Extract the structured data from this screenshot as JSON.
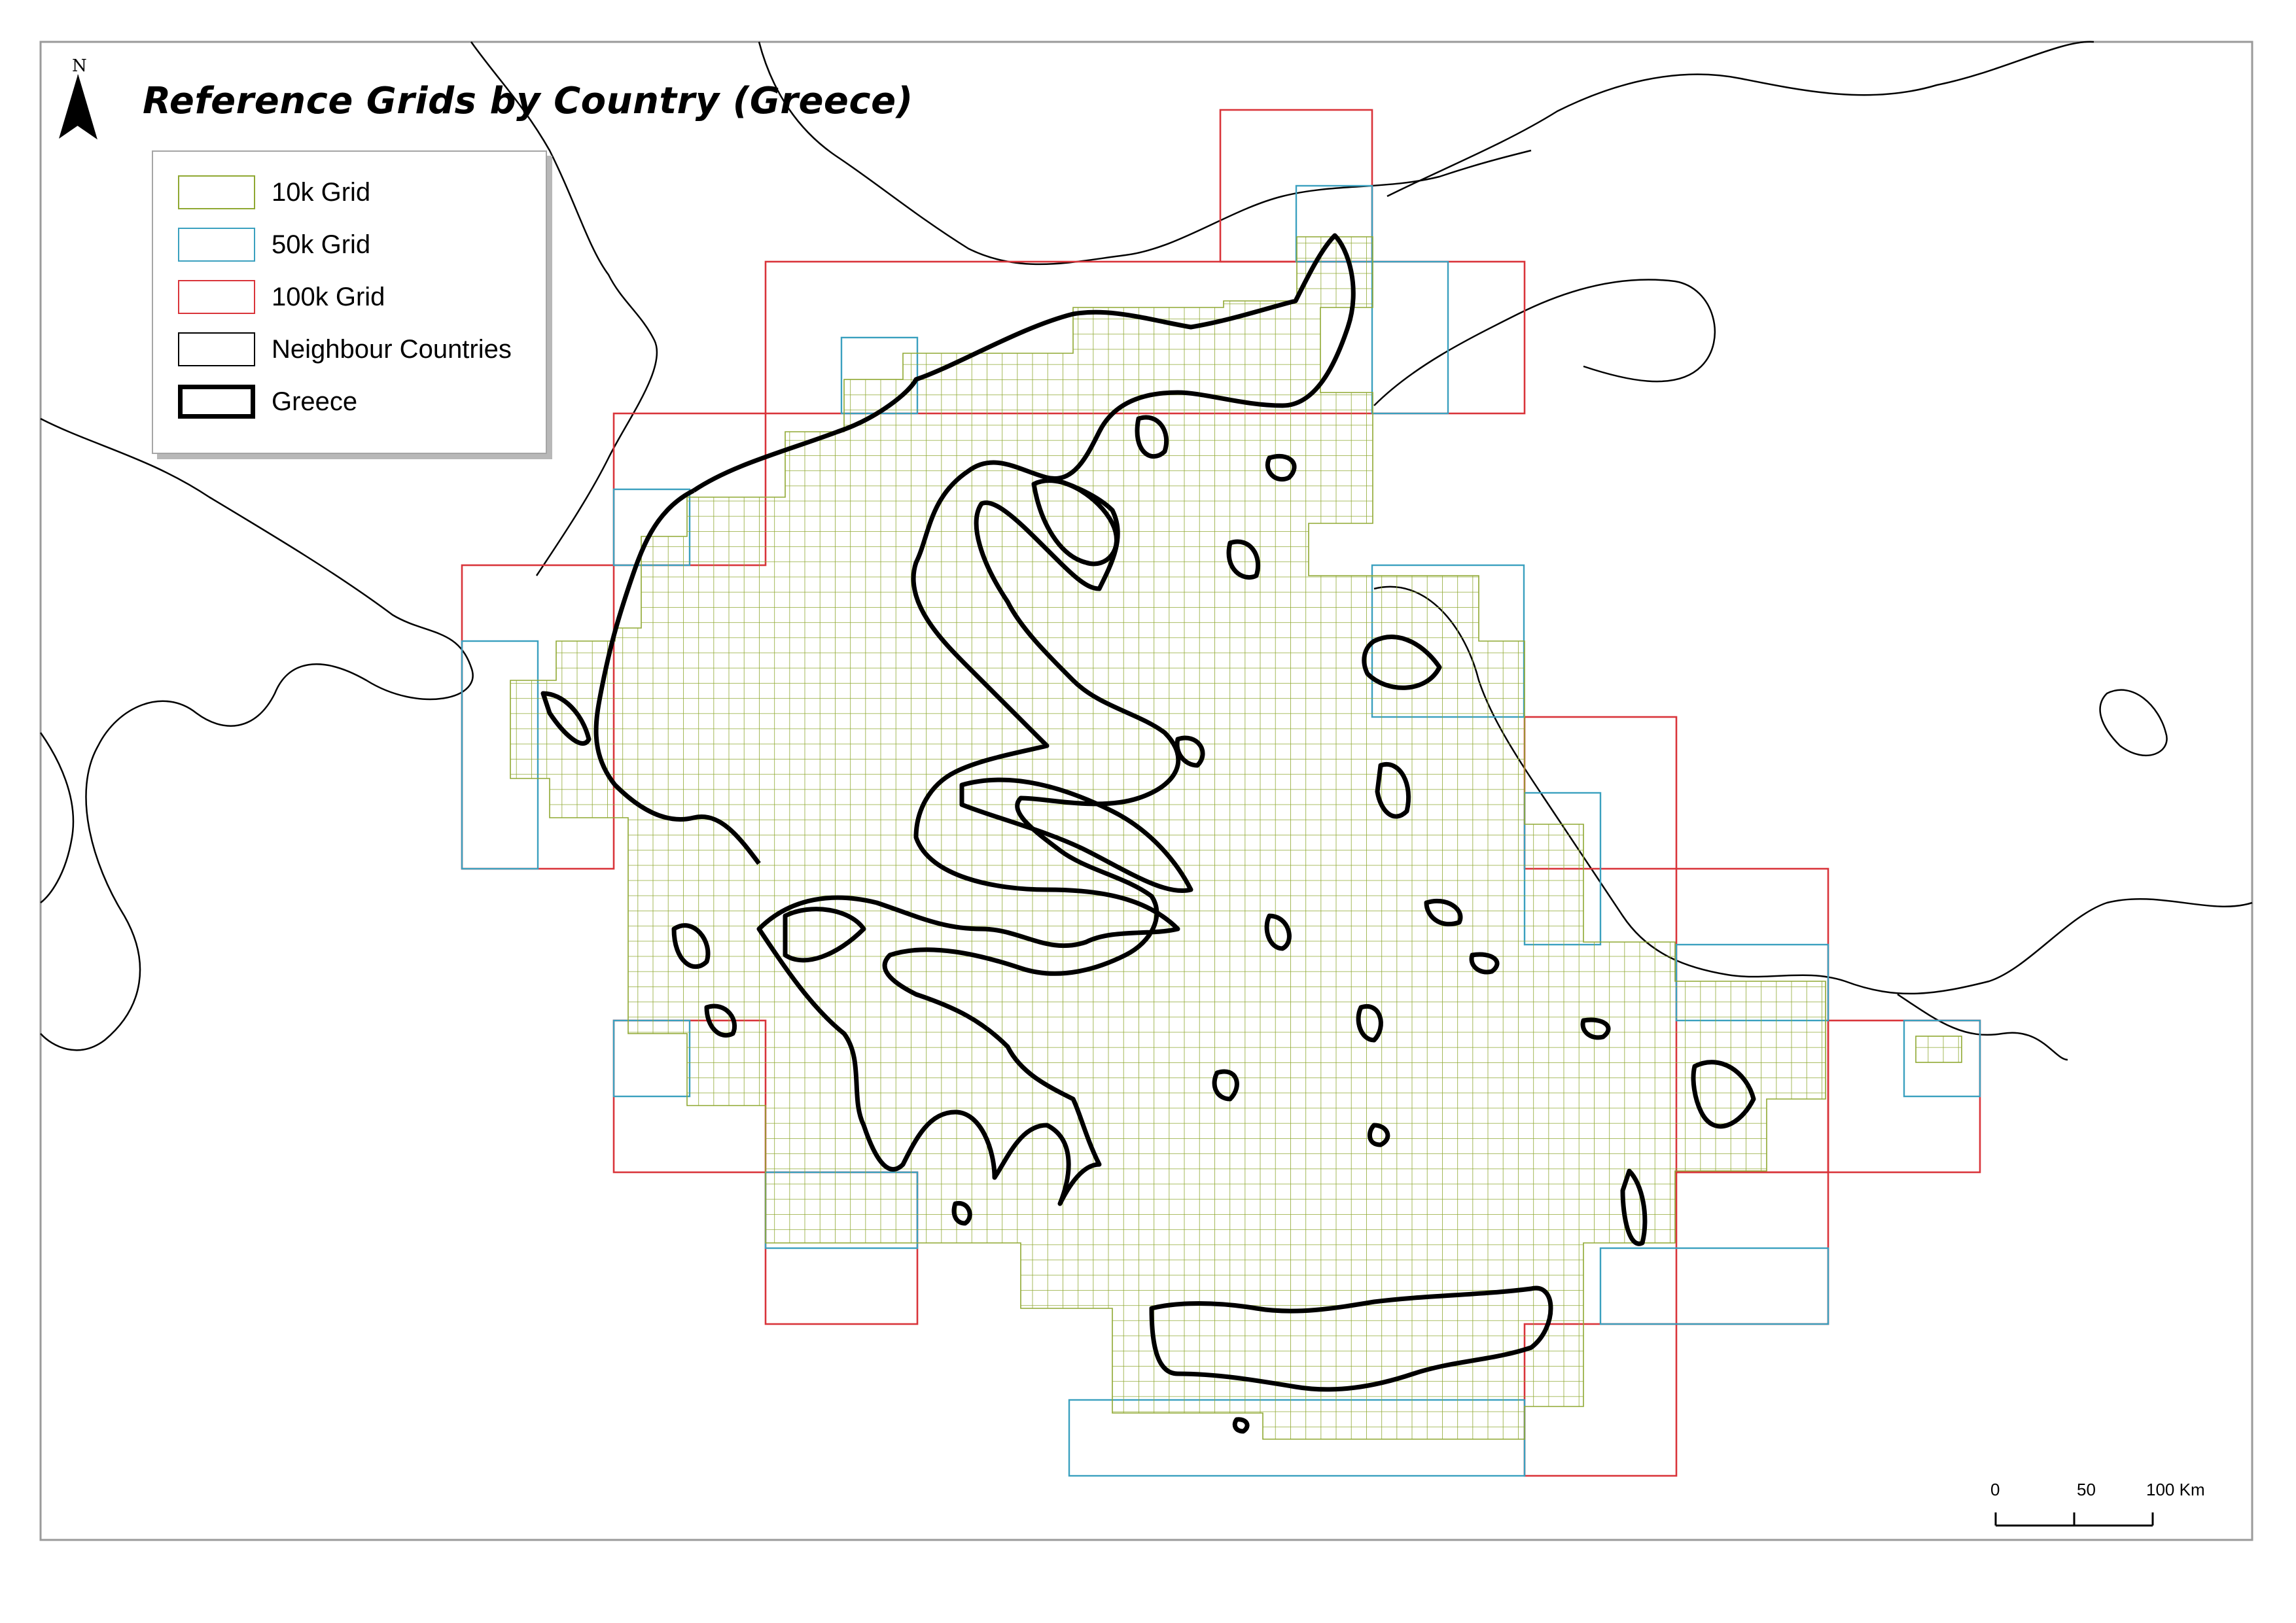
{
  "title": "Reference Grids by Country (Greece)",
  "north_arrow": {
    "letter": "N"
  },
  "legend": {
    "items": [
      {
        "label": "10k Grid",
        "color": "#8fa832",
        "style": "thin"
      },
      {
        "label": "50k Grid",
        "color": "#3aa0bf",
        "style": "thin"
      },
      {
        "label": "100k Grid",
        "color": "#d9343a",
        "style": "thin"
      },
      {
        "label": "Neighbour Countries",
        "color": "#000000",
        "style": "thin"
      },
      {
        "label": "Greece",
        "color": "#000000",
        "style": "thick"
      }
    ]
  },
  "scale_bar": {
    "labels": [
      "0",
      "50",
      "100 Km"
    ]
  },
  "colors": {
    "grid_10k": "#8fa832",
    "grid_50k": "#3aa0bf",
    "grid_100k": "#d9343a",
    "outline": "#000000"
  }
}
